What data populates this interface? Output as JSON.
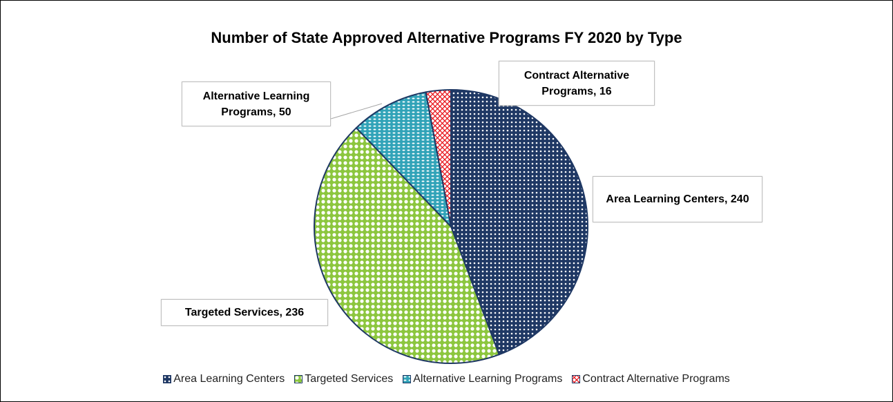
{
  "chart_data": {
    "type": "pie",
    "title": "Number of State Approved Alternative Programs FY 2020 by Type",
    "categories": [
      "Area Learning Centers",
      "Targeted Services",
      "Alternative Learning Programs",
      "Contract Alternative Programs"
    ],
    "values": [
      240,
      236,
      50,
      16
    ],
    "value_labels": [
      "Area Learning Centers, 240",
      "Targeted Services, 236",
      "Alternative Learning Programs, 50",
      "Contract Alternative Programs, 16"
    ],
    "colors": [
      "#1f3864",
      "#8cc63e",
      "#31a3b8",
      "#e8141b"
    ],
    "legend": "bottom"
  }
}
